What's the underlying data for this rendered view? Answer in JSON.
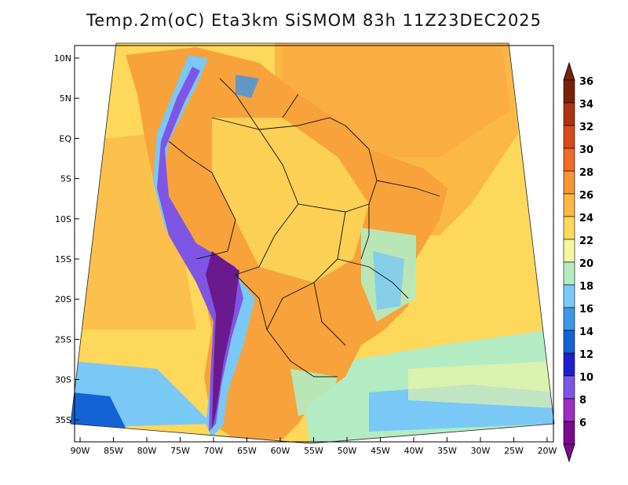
{
  "title": "Temp.2m(oC) Eta3km SiSMOM 83h 11Z23DEC2025",
  "lat_labels": [
    "10N",
    "5N",
    "EQ",
    "5S",
    "10S",
    "15S",
    "20S",
    "25S",
    "30S",
    "35S"
  ],
  "lon_labels": [
    "90W",
    "85W",
    "80W",
    "75W",
    "70W",
    "65W",
    "60W",
    "55W",
    "50W",
    "45W",
    "40W",
    "35W",
    "30W",
    "25W",
    "20W"
  ],
  "colorbar": {
    "labels": [
      "6",
      "8",
      "10",
      "12",
      "14",
      "16",
      "18",
      "20",
      "22",
      "24",
      "26",
      "28",
      "30",
      "32",
      "34",
      "36"
    ],
    "colors": [
      "#7a0a8a",
      "#9b2fc0",
      "#7f55e6",
      "#1e1ecf",
      "#1463d6",
      "#3c96ea",
      "#79c8f5",
      "#b3ecc2",
      "#f2f7a0",
      "#fdd85a",
      "#fbb844",
      "#f79433",
      "#f06a28",
      "#d84a1a",
      "#b03210",
      "#7a2208"
    ]
  },
  "palette": {
    "ocean_warm": "#fde06a",
    "ocean_mid": "#fbbf4a",
    "land_warm": "#f7a23a",
    "andes": "#6a1a8c",
    "cool": "#8fd7f2"
  }
}
